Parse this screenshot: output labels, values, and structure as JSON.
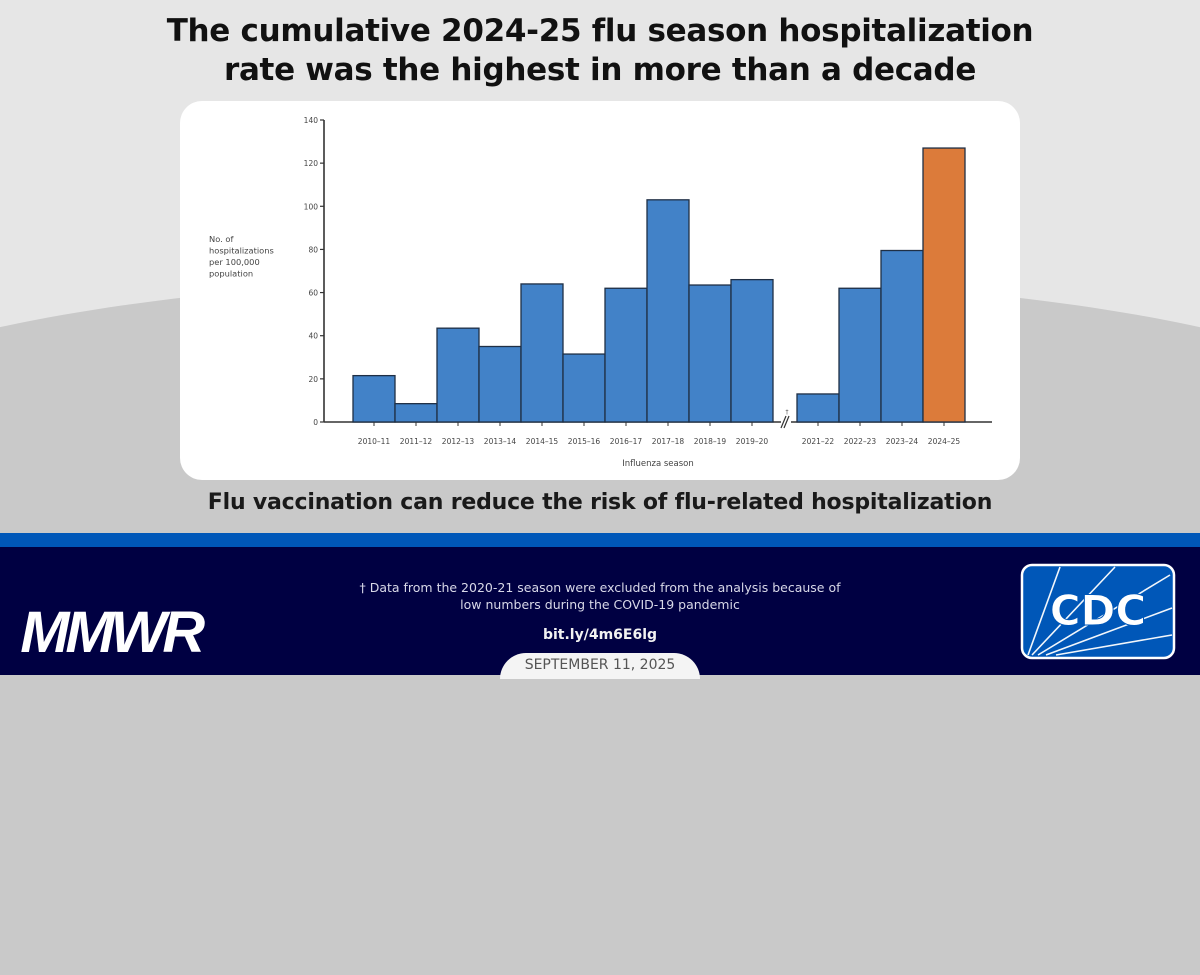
{
  "header": {
    "title_line1": "The cumulative 2024-25 flu season hospitalization",
    "title_line2": "rate was the highest in more than a decade"
  },
  "subtitle": "Flu vaccination can reduce the risk of flu-related hospitalization",
  "footer": {
    "brand": "MMWR",
    "footnote_line1": "† Data from the 2020-21 season were excluded from the analysis because of",
    "footnote_line2": "low numbers during the COVID-19 pandemic",
    "link": "bit.ly/4m6E6lg",
    "date": "SEPTEMBER 11, 2025",
    "logo_text": "CDC"
  },
  "colors": {
    "bar_blue": "#4282c8",
    "bar_highlight": "#dc7b3a",
    "stripe_blue": "#0057b8",
    "footer_navy": "#000042"
  },
  "chart_data": {
    "type": "bar",
    "title": "The cumulative 2024-25 flu season hospitalization rate was the highest in more than a decade",
    "xlabel": "Influenza season",
    "ylabel": "No. of hospitalizations per 100,000 population",
    "ylabel_lines": [
      "No. of",
      "hospitalizations",
      "per 100,000",
      "population"
    ],
    "ylim": [
      0,
      140
    ],
    "yticks": [
      0,
      20,
      40,
      60,
      80,
      100,
      120,
      140
    ],
    "grid": false,
    "legend": null,
    "categories": [
      "2010–11",
      "2011–12",
      "2012–13",
      "2013–14",
      "2014–15",
      "2015–16",
      "2016–17",
      "2017–18",
      "2018–19",
      "2019–20",
      "2021–22",
      "2022–23",
      "2023–24",
      "2024–25"
    ],
    "values": [
      21.5,
      8.5,
      43.5,
      35,
      64,
      31.5,
      62,
      103,
      63.5,
      66,
      13,
      62,
      79.5,
      127
    ],
    "highlight": "2024–25",
    "axis_break_after": "2019–20",
    "axis_break_note": "†"
  }
}
